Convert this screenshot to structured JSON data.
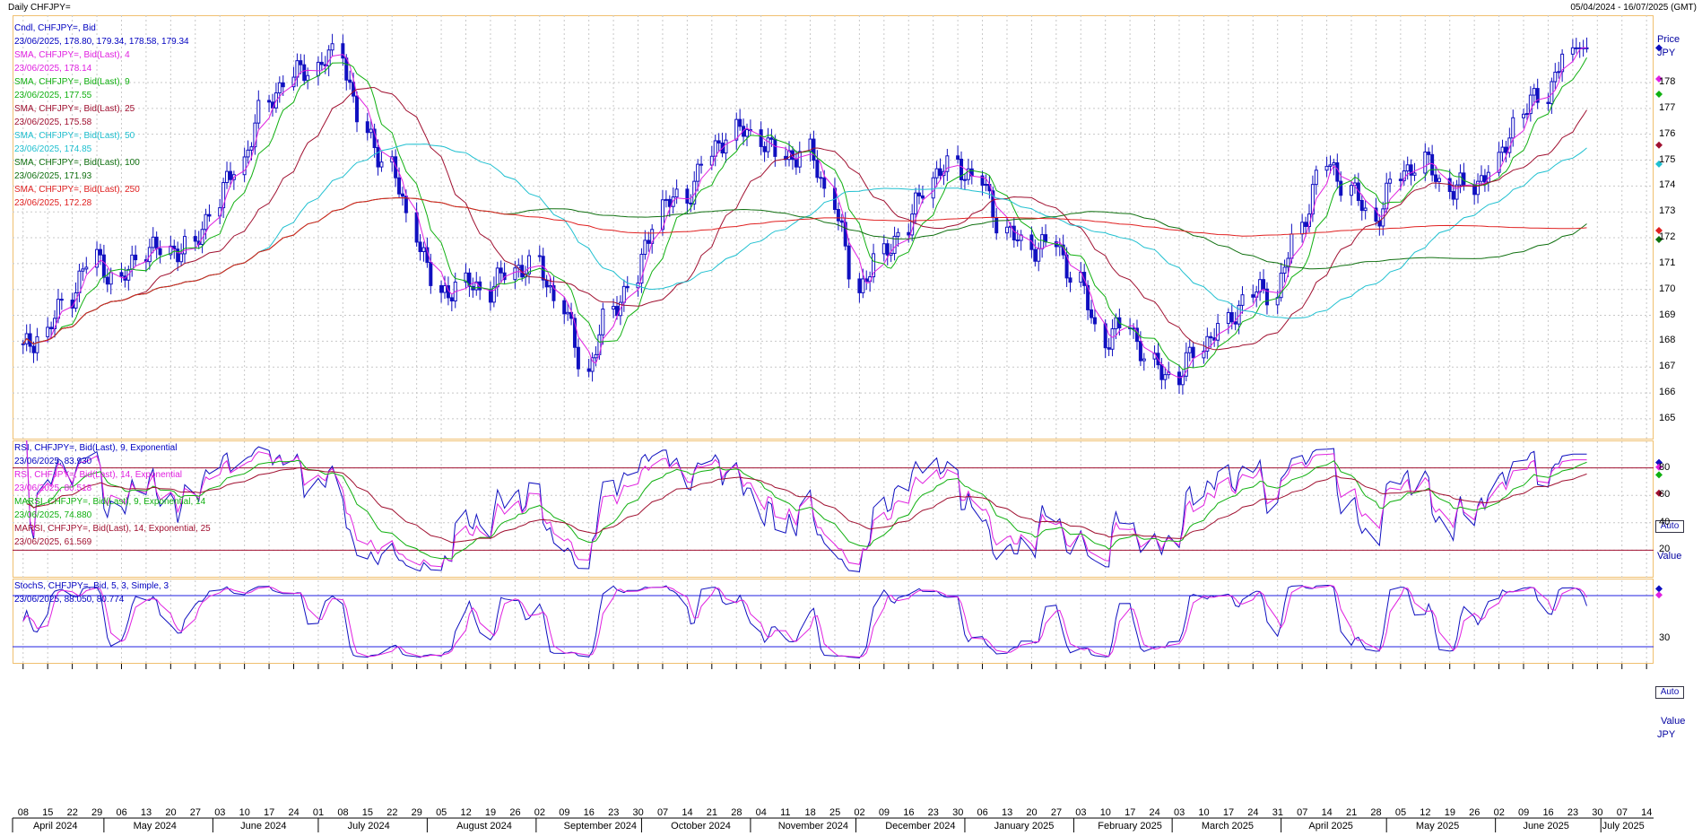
{
  "header": {
    "left": "Daily CHFJPY=",
    "right": "05/04/2024 - 16/07/2025 (GMT)"
  },
  "price_panel": {
    "legend": [
      {
        "text": "Cndl, CHFJPY=, Bid",
        "color": "#0000c0"
      },
      {
        "text": "23/06/2025, 178.80, 179.34, 178.58, 179.34",
        "color": "#0000c0"
      },
      {
        "text": "SMA, CHFJPY=, Bid(Last), 4",
        "color": "#e020e0"
      },
      {
        "text": "23/06/2025, 178.14",
        "color": "#e020e0"
      },
      {
        "text": "SMA, CHFJPY=, Bid(Last), 9",
        "color": "#10b010"
      },
      {
        "text": "23/06/2025, 177.55",
        "color": "#10b010"
      },
      {
        "text": "SMA, CHFJPY=, Bid(Last), 25",
        "color": "#a01030"
      },
      {
        "text": "23/06/2025, 175.58",
        "color": "#a01030"
      },
      {
        "text": "SMA, CHFJPY=, Bid(Last), 50",
        "color": "#20c0d0"
      },
      {
        "text": "23/06/2025, 174.85",
        "color": "#20c0d0"
      },
      {
        "text": "SMA, CHFJPY=, Bid(Last), 100",
        "color": "#107010"
      },
      {
        "text": "23/06/2025, 171.93",
        "color": "#107010"
      },
      {
        "text": "SMA, CHFJPY=, Bid(Last), 250",
        "color": "#e02020"
      },
      {
        "text": "23/06/2025, 172.28",
        "color": "#e02020"
      }
    ],
    "axis_title_1": "Price",
    "axis_title_2": "JPY",
    "auto": "Auto"
  },
  "rsi_panel": {
    "legend": [
      {
        "text": "RSI, CHFJPY=, Bid(Last), 9, Exponential",
        "color": "#0000c0"
      },
      {
        "text": "23/06/2025, 83.930",
        "color": "#0000c0"
      },
      {
        "text": "RSI, CHFJPY=, Bid(Last), 14, Exponential",
        "color": "#e020e0"
      },
      {
        "text": "23/06/2025, 80.518",
        "color": "#e020e0"
      },
      {
        "text": "MARSI, CHFJPY=, Bid(Last), 9, Exponential, 14",
        "color": "#10b010"
      },
      {
        "text": "23/06/2025, 74.880",
        "color": "#10b010"
      },
      {
        "text": "MARSI, CHFJPY=, Bid(Last), 14, Exponential, 25",
        "color": "#a01030"
      },
      {
        "text": "23/06/2025, 61.569",
        "color": "#a01030"
      }
    ],
    "axis_title": "Value",
    "auto": "Auto"
  },
  "stoch_panel": {
    "legend": [
      {
        "text": "StochS, CHFJPY=, Bid, 5, 3, Simple, 3",
        "color": "#0000c0"
      },
      {
        "text": "23/06/2025, 88.050, 80.774",
        "color": "#0000c0"
      }
    ],
    "axis_title_1": "Value",
    "axis_title_2": "JPY"
  },
  "colors": {
    "candle": "#1010c0",
    "sma4": "#e020e0",
    "sma9": "#10b010",
    "sma25": "#a01030",
    "sma50": "#20c0d0",
    "sma100": "#107010",
    "sma250": "#e02020",
    "grid": "#c8c8c8",
    "panel_border": "#f0c070",
    "ref_line_rsi": "#a01030",
    "ref_line_stoch": "#2020e0"
  },
  "chart_data": [
    {
      "type": "candlestick",
      "title": "Daily CHFJPY=",
      "ylabel": "Price JPY",
      "ylim": [
        164.2,
        180.6
      ],
      "yticks": [
        165,
        166,
        167,
        168,
        169,
        170,
        171,
        172,
        173,
        174,
        175,
        176,
        177,
        178
      ],
      "x_range": [
        "2024-04-05",
        "2025-07-16"
      ],
      "x_day_labels": [
        "08",
        "15",
        "22",
        "29",
        "06",
        "13",
        "20",
        "27",
        "03",
        "10",
        "17",
        "24",
        "01",
        "08",
        "15",
        "22",
        "29",
        "05",
        "12",
        "19",
        "26",
        "02",
        "09",
        "16",
        "23",
        "30",
        "07",
        "14",
        "21",
        "28",
        "04",
        "11",
        "18",
        "25",
        "02",
        "09",
        "16",
        "23",
        "30",
        "06",
        "13",
        "20",
        "27",
        "03",
        "10",
        "17",
        "24",
        "03",
        "10",
        "17",
        "24",
        "31",
        "07",
        "14",
        "21",
        "28",
        "05",
        "12",
        "19",
        "26",
        "02",
        "09",
        "16",
        "23",
        "30",
        "07",
        "14"
      ],
      "month_labels": [
        "April 2024",
        "May 2024",
        "June 2024",
        "July 2024",
        "August 2024",
        "September 2024",
        "October 2024",
        "November 2024",
        "December 2024",
        "January 2025",
        "February 2025",
        "March 2025",
        "April 2025",
        "May 2025",
        "June 2025",
        "July 2025"
      ],
      "close_series_weekly": [
        {
          "date": "2024-04-08",
          "close": 167.7
        },
        {
          "date": "2024-04-15",
          "close": 168.3
        },
        {
          "date": "2024-04-22",
          "close": 169.8
        },
        {
          "date": "2024-04-29",
          "close": 171.3
        },
        {
          "date": "2024-05-06",
          "close": 170.2
        },
        {
          "date": "2024-05-13",
          "close": 171.6
        },
        {
          "date": "2024-05-20",
          "close": 171.5
        },
        {
          "date": "2024-05-27",
          "close": 171.6
        },
        {
          "date": "2024-06-03",
          "close": 173.5
        },
        {
          "date": "2024-06-10",
          "close": 175.0
        },
        {
          "date": "2024-06-17",
          "close": 177.2
        },
        {
          "date": "2024-06-24",
          "close": 178.3
        },
        {
          "date": "2024-07-01",
          "close": 178.6
        },
        {
          "date": "2024-07-08",
          "close": 179.2
        },
        {
          "date": "2024-07-15",
          "close": 176.0
        },
        {
          "date": "2024-07-22",
          "close": 174.8
        },
        {
          "date": "2024-07-29",
          "close": 172.3
        },
        {
          "date": "2024-08-05",
          "close": 169.8
        },
        {
          "date": "2024-08-12",
          "close": 170.2
        },
        {
          "date": "2024-08-19",
          "close": 170.0
        },
        {
          "date": "2024-08-26",
          "close": 170.8
        },
        {
          "date": "2024-09-02",
          "close": 170.9
        },
        {
          "date": "2024-09-09",
          "close": 169.4
        },
        {
          "date": "2024-09-16",
          "close": 166.8
        },
        {
          "date": "2024-09-23",
          "close": 169.2
        },
        {
          "date": "2024-09-30",
          "close": 170.4
        },
        {
          "date": "2024-10-07",
          "close": 173.3
        },
        {
          "date": "2024-10-14",
          "close": 173.5
        },
        {
          "date": "2024-10-21",
          "close": 175.2
        },
        {
          "date": "2024-10-28",
          "close": 176.2
        },
        {
          "date": "2024-11-04",
          "close": 175.9
        },
        {
          "date": "2024-11-11",
          "close": 175.1
        },
        {
          "date": "2024-11-18",
          "close": 175.3
        },
        {
          "date": "2024-11-25",
          "close": 173.5
        },
        {
          "date": "2024-12-02",
          "close": 170.0
        },
        {
          "date": "2024-12-09",
          "close": 171.3
        },
        {
          "date": "2024-12-16",
          "close": 172.4
        },
        {
          "date": "2024-12-23",
          "close": 174.4
        },
        {
          "date": "2024-12-30",
          "close": 174.8
        },
        {
          "date": "2025-01-06",
          "close": 174.2
        },
        {
          "date": "2025-01-13",
          "close": 172.3
        },
        {
          "date": "2025-01-20",
          "close": 171.6
        },
        {
          "date": "2025-01-27",
          "close": 171.8
        },
        {
          "date": "2025-02-03",
          "close": 170.3
        },
        {
          "date": "2025-02-10",
          "close": 168.0
        },
        {
          "date": "2025-02-17",
          "close": 168.7
        },
        {
          "date": "2025-02-24",
          "close": 167.0
        },
        {
          "date": "2025-03-03",
          "close": 166.6
        },
        {
          "date": "2025-03-10",
          "close": 167.9
        },
        {
          "date": "2025-03-17",
          "close": 168.6
        },
        {
          "date": "2025-03-24",
          "close": 169.9
        },
        {
          "date": "2025-03-31",
          "close": 169.9
        },
        {
          "date": "2025-04-07",
          "close": 172.3
        },
        {
          "date": "2025-04-14",
          "close": 174.9
        },
        {
          "date": "2025-04-21",
          "close": 174.0
        },
        {
          "date": "2025-04-28",
          "close": 172.6
        },
        {
          "date": "2025-05-05",
          "close": 174.4
        },
        {
          "date": "2025-05-12",
          "close": 175.0
        },
        {
          "date": "2025-05-19",
          "close": 173.9
        },
        {
          "date": "2025-05-26",
          "close": 174.0
        },
        {
          "date": "2025-06-02",
          "close": 174.8
        },
        {
          "date": "2025-06-09",
          "close": 176.9
        },
        {
          "date": "2025-06-16",
          "close": 177.6
        },
        {
          "date": "2025-06-23",
          "close": 179.34
        }
      ],
      "last_candle": {
        "date": "2025-06-23",
        "open": 178.8,
        "high": 179.34,
        "low": 178.58,
        "close": 179.34
      },
      "series_last_values": {
        "SMA 4": 178.14,
        "SMA 9": 177.55,
        "SMA 25": 175.58,
        "SMA 50": 174.85,
        "SMA 100": 171.93,
        "SMA 250": 172.28
      }
    },
    {
      "type": "line",
      "title": "RSI",
      "ylim": [
        0,
        100
      ],
      "yticks": [
        20,
        40,
        60,
        80
      ],
      "reference_lines": [
        20,
        80
      ],
      "series_last_values": {
        "RSI 9": 83.93,
        "RSI 14": 80.518,
        "MARSI 9/14": 74.88,
        "MARSI 14/25": 61.569
      }
    },
    {
      "type": "line",
      "title": "StochS",
      "ylim": [
        0,
        100
      ],
      "yticks": [
        30
      ],
      "reference_lines": [
        20,
        80
      ],
      "series_last_values": {
        "%K": 88.05,
        "%D": 80.774
      }
    }
  ]
}
